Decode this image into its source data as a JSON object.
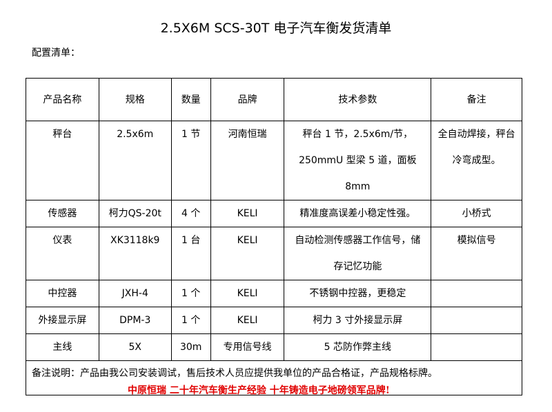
{
  "title": "2.5X6M SCS-30T 电子汽车衡发货清单",
  "subtitle": "配置清单：",
  "table": {
    "headers": [
      "产品名称",
      "规格",
      "数量",
      "品牌",
      "技术参数",
      "备注"
    ],
    "rows": [
      [
        "秤台",
        "2.5x6m",
        "1 节",
        "河南恒瑞",
        "秤台 1 节，2.5x6m/节，250mmU 型梁 5 道，面板 8mm",
        "全自动焊接，秤台冷弯成型。"
      ],
      [
        "传感器",
        "柯力QS-20t",
        "4 个",
        "KELI",
        "精准度高误差小稳定性强。",
        "小桥式"
      ],
      [
        "仪表",
        "XK3118k9",
        "1 台",
        "KELI",
        "自动检测传感器工作信号，储存记忆功能",
        "模拟信号"
      ],
      [
        "中控器",
        "JXH-4",
        "1 个",
        "KELI",
        "不锈钢中控器，更稳定",
        ""
      ],
      [
        "外接显示屏",
        "DPM-3",
        "1 个",
        "KELI",
        "柯力 3 寸外接显示屏",
        ""
      ],
      [
        "主线",
        "5X",
        "30m",
        "专用信号线",
        "5 芯防作弊主线",
        ""
      ]
    ],
    "note": "备注说明：产品由我公司安装调试，售后技术人员应提供我单位的产品合格证，产品规格标牌。"
  },
  "footer": "中原恒瑞 二十年汽车衡生产经验 十年铸造电子地磅领军品牌!",
  "colors": {
    "footer": "#e00000"
  }
}
